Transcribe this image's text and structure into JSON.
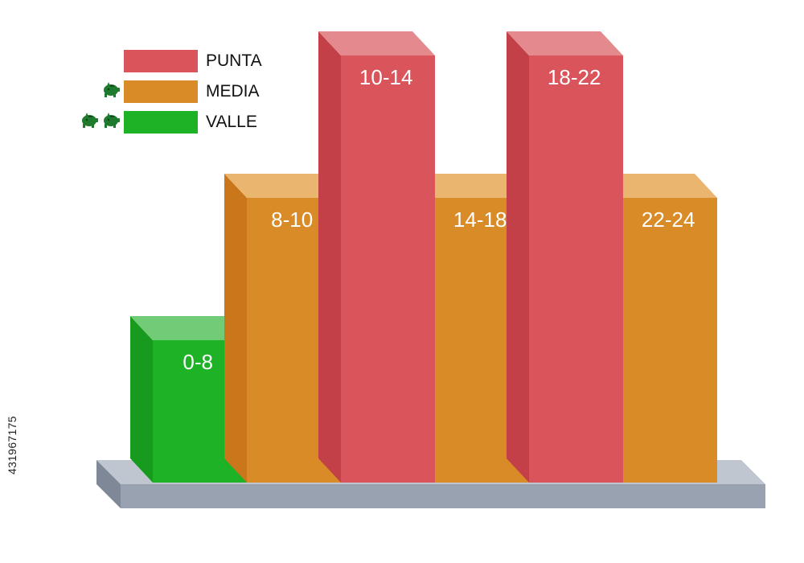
{
  "chart_data": {
    "type": "bar",
    "categories": [
      "0-8",
      "8-10",
      "10-14",
      "14-18",
      "18-22",
      "22-24"
    ],
    "values": [
      1,
      2,
      3,
      2,
      3,
      2
    ],
    "levels": [
      "VALLE",
      "MEDIA",
      "PUNTA",
      "MEDIA",
      "PUNTA",
      "MEDIA"
    ],
    "ylim": [
      0,
      3
    ],
    "legend": [
      {
        "label": "PUNTA",
        "color": "#d9555b",
        "piggy_icons": 0
      },
      {
        "label": "MEDIA",
        "color": "#d98b27",
        "piggy_icons": 1
      },
      {
        "label": "VALLE",
        "color": "#1eb226",
        "piggy_icons": 2
      }
    ],
    "legend_position": "top-left",
    "grid": false,
    "colors": {
      "PUNTA": {
        "front": "#d9555b",
        "side": "#c44048",
        "top": "#e48a8e"
      },
      "MEDIA": {
        "front": "#d98b27",
        "side": "#c9771a",
        "top": "#eab56e"
      },
      "VALLE": {
        "front": "#1eb226",
        "side": "#179a1e",
        "top": "#72cc77"
      },
      "base": {
        "front": "#98a2b0",
        "top": "#bfc6d0"
      }
    }
  },
  "stock_id": "431967175",
  "icon": "piggy-bank-icon"
}
